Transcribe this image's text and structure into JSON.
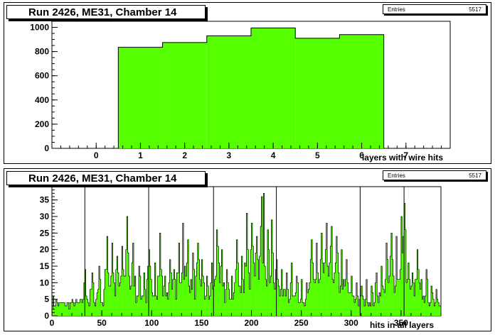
{
  "chart_data": [
    {
      "type": "bar",
      "title": "Run 2426, ME31, Chamber 14",
      "xlabel": "layers with wire hits",
      "ylabel": "",
      "stats": {
        "label": "Entries",
        "value": "5517"
      },
      "xlim": [
        -1,
        8
      ],
      "ylim": [
        0,
        1050
      ],
      "xticks": [
        0,
        1,
        2,
        3,
        4,
        5,
        6,
        7
      ],
      "yticks": [
        0,
        200,
        400,
        600,
        800,
        1000
      ],
      "bins": [
        {
          "x": 1,
          "value": 835
        },
        {
          "x": 2,
          "value": 875
        },
        {
          "x": 3,
          "value": 930
        },
        {
          "x": 4,
          "value": 995
        },
        {
          "x": 5,
          "value": 910
        },
        {
          "x": 6,
          "value": 940
        }
      ],
      "bin_width": 1,
      "fill_color": "#55ff00",
      "grid": false
    },
    {
      "type": "bar",
      "title": "Run 2426, ME31, Chamber 14",
      "xlabel": "hits in all layers",
      "ylabel": "",
      "stats": {
        "label": "Entries",
        "value": "5517"
      },
      "xlim": [
        0,
        390
      ],
      "ylim": [
        0,
        39
      ],
      "xticks": [
        0,
        50,
        100,
        150,
        200,
        250,
        300,
        350
      ],
      "yticks": [
        0,
        5,
        10,
        15,
        20,
        25,
        30,
        35
      ],
      "bin_width": 1,
      "fill_color": "#55ff00",
      "grid": false,
      "peaks": [
        {
          "x": 33,
          "value": 14
        },
        {
          "x": 40,
          "value": 13
        },
        {
          "x": 47,
          "value": 15
        },
        {
          "x": 55,
          "value": 24
        },
        {
          "x": 60,
          "value": 22
        },
        {
          "x": 65,
          "value": 18
        },
        {
          "x": 70,
          "value": 21
        },
        {
          "x": 75,
          "value": 30
        },
        {
          "x": 81,
          "value": 22
        },
        {
          "x": 87,
          "value": 15
        },
        {
          "x": 92,
          "value": 13
        },
        {
          "x": 97,
          "value": 20
        },
        {
          "x": 103,
          "value": 16
        },
        {
          "x": 108,
          "value": 25
        },
        {
          "x": 113,
          "value": 12
        },
        {
          "x": 118,
          "value": 17
        },
        {
          "x": 122,
          "value": 14
        },
        {
          "x": 127,
          "value": 22
        },
        {
          "x": 131,
          "value": 28
        },
        {
          "x": 136,
          "value": 23
        },
        {
          "x": 141,
          "value": 19
        },
        {
          "x": 146,
          "value": 22
        },
        {
          "x": 150,
          "value": 17
        },
        {
          "x": 155,
          "value": 12
        },
        {
          "x": 160,
          "value": 16
        },
        {
          "x": 165,
          "value": 26
        },
        {
          "x": 170,
          "value": 20
        },
        {
          "x": 175,
          "value": 14
        },
        {
          "x": 180,
          "value": 12
        },
        {
          "x": 185,
          "value": 23
        },
        {
          "x": 190,
          "value": 18
        },
        {
          "x": 195,
          "value": 31
        },
        {
          "x": 200,
          "value": 28
        },
        {
          "x": 205,
          "value": 24
        },
        {
          "x": 210,
          "value": 36
        },
        {
          "x": 212,
          "value": 37
        },
        {
          "x": 216,
          "value": 26
        },
        {
          "x": 220,
          "value": 29
        },
        {
          "x": 225,
          "value": 17
        },
        {
          "x": 230,
          "value": 14
        },
        {
          "x": 235,
          "value": 13
        },
        {
          "x": 240,
          "value": 16
        },
        {
          "x": 245,
          "value": 12
        },
        {
          "x": 250,
          "value": 11
        },
        {
          "x": 255,
          "value": 10
        },
        {
          "x": 260,
          "value": 23
        },
        {
          "x": 265,
          "value": 22
        },
        {
          "x": 270,
          "value": 25
        },
        {
          "x": 275,
          "value": 28
        },
        {
          "x": 280,
          "value": 27
        },
        {
          "x": 285,
          "value": 24
        },
        {
          "x": 290,
          "value": 20
        },
        {
          "x": 295,
          "value": 17
        },
        {
          "x": 300,
          "value": 12
        },
        {
          "x": 305,
          "value": 10
        },
        {
          "x": 310,
          "value": 9
        },
        {
          "x": 315,
          "value": 11
        },
        {
          "x": 320,
          "value": 9
        },
        {
          "x": 325,
          "value": 13
        },
        {
          "x": 330,
          "value": 15
        },
        {
          "x": 335,
          "value": 22
        },
        {
          "x": 340,
          "value": 25
        },
        {
          "x": 345,
          "value": 24
        },
        {
          "x": 350,
          "value": 30
        },
        {
          "x": 353,
          "value": 34
        },
        {
          "x": 357,
          "value": 16
        },
        {
          "x": 361,
          "value": 13
        },
        {
          "x": 366,
          "value": 20
        },
        {
          "x": 370,
          "value": 11
        },
        {
          "x": 375,
          "value": 14
        },
        {
          "x": 380,
          "value": 9
        },
        {
          "x": 385,
          "value": 8
        }
      ],
      "baseline_value": 5
    }
  ]
}
